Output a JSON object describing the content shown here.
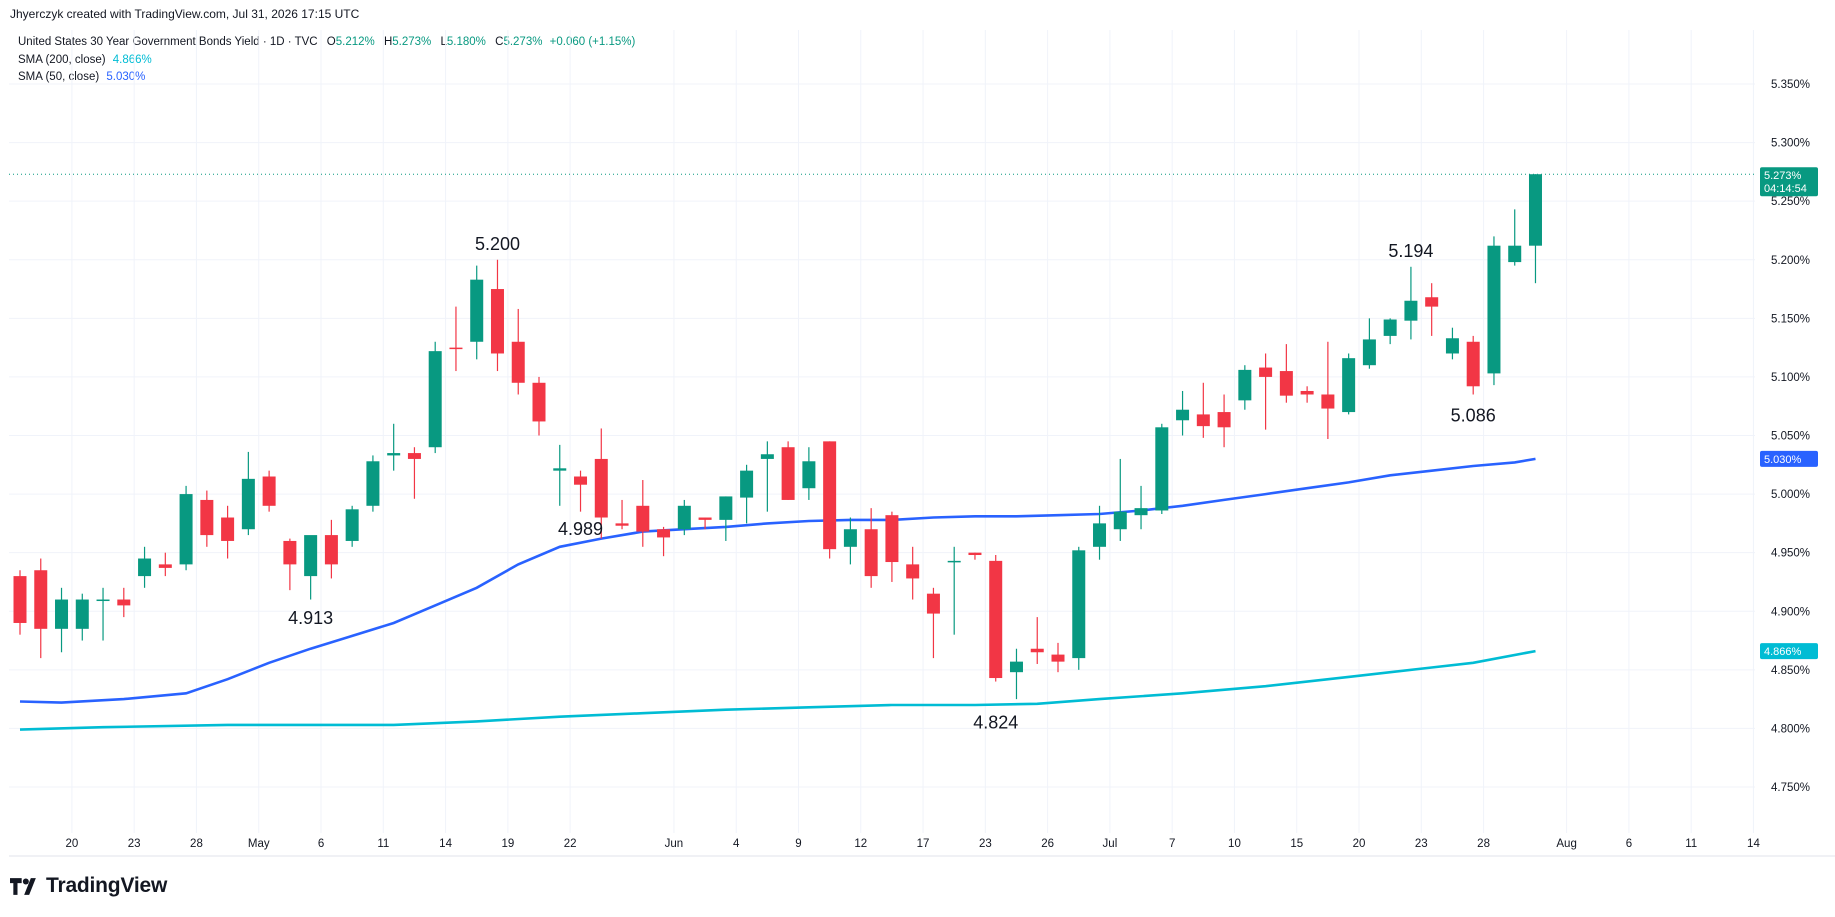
{
  "attribution": "Jhyerczyk created with TradingView.com, Jul 31, 2026 17:15 UTC",
  "legend": {
    "symbol": "United States 30 Year Government Bonds Yield · 1D · TVC",
    "o_label": "O",
    "o_value": "5.212%",
    "h_label": "H",
    "h_value": "5.273%",
    "l_label": "L",
    "l_value": "5.180%",
    "c_label": "C",
    "c_value": "5.273%",
    "change": "+0.060 (+1.15%)",
    "sma200_label": "SMA (200, close)",
    "sma200_value": "4.866%",
    "sma50_label": "SMA (50, close)",
    "sma50_value": "5.030%"
  },
  "price_tag": {
    "value": "5.273%",
    "countdown": "04:14:54"
  },
  "sma50_tag": "5.030%",
  "sma200_tag": "4.866%",
  "brand": "TradingView",
  "colors": {
    "up": "#089981",
    "down": "#f23645",
    "sma50": "#2962ff",
    "sma200": "#00bcd4",
    "grid": "#f0f3fa",
    "text": "#131722"
  },
  "chart_data": {
    "type": "candlestick",
    "ylim": [
      4.71,
      5.4
    ],
    "yticks": [
      "5.350%",
      "5.300%",
      "5.250%",
      "5.200%",
      "5.150%",
      "5.100%",
      "5.050%",
      "5.000%",
      "4.950%",
      "4.900%",
      "4.850%",
      "4.800%",
      "4.750%"
    ],
    "ytick_values": [
      5.35,
      5.3,
      5.25,
      5.2,
      5.15,
      5.1,
      5.05,
      5.0,
      4.95,
      4.9,
      4.85,
      4.8,
      4.75
    ],
    "xticks": [
      {
        "slot": 2.5,
        "label": "20"
      },
      {
        "slot": 5.5,
        "label": "23"
      },
      {
        "slot": 8.5,
        "label": "28"
      },
      {
        "slot": 11.5,
        "label": "May"
      },
      {
        "slot": 14.5,
        "label": "6"
      },
      {
        "slot": 17.5,
        "label": "11"
      },
      {
        "slot": 20.5,
        "label": "14"
      },
      {
        "slot": 23.5,
        "label": "19"
      },
      {
        "slot": 26.5,
        "label": "22"
      },
      {
        "slot": 31.5,
        "label": "Jun"
      },
      {
        "slot": 34.5,
        "label": "4"
      },
      {
        "slot": 37.5,
        "label": "9"
      },
      {
        "slot": 40.5,
        "label": "12"
      },
      {
        "slot": 43.5,
        "label": "17"
      },
      {
        "slot": 46.5,
        "label": "23"
      },
      {
        "slot": 49.5,
        "label": "26"
      },
      {
        "slot": 52.5,
        "label": "Jul"
      },
      {
        "slot": 55.5,
        "label": "7"
      },
      {
        "slot": 58.5,
        "label": "10"
      },
      {
        "slot": 61.5,
        "label": "15"
      },
      {
        "slot": 64.5,
        "label": "20"
      },
      {
        "slot": 67.5,
        "label": "23"
      },
      {
        "slot": 70.5,
        "label": "28"
      },
      {
        "slot": 74.5,
        "label": "Aug"
      },
      {
        "slot": 77.5,
        "label": "6"
      },
      {
        "slot": 80.5,
        "label": "11"
      },
      {
        "slot": 83.5,
        "label": "14"
      }
    ],
    "candles": [
      [
        4.93,
        4.935,
        4.88,
        4.89
      ],
      [
        4.935,
        4.945,
        4.86,
        4.885
      ],
      [
        4.885,
        4.92,
        4.865,
        4.91
      ],
      [
        4.885,
        4.915,
        4.875,
        4.91
      ],
      [
        4.91,
        4.92,
        4.875,
        4.91
      ],
      [
        4.91,
        4.92,
        4.895,
        4.905
      ],
      [
        4.93,
        4.955,
        4.92,
        4.945
      ],
      [
        4.94,
        4.95,
        4.93,
        4.937
      ],
      [
        4.94,
        5.007,
        4.935,
        5.0
      ],
      [
        4.995,
        5.003,
        4.955,
        4.965
      ],
      [
        4.98,
        4.99,
        4.945,
        4.96
      ],
      [
        4.97,
        5.036,
        4.965,
        5.013
      ],
      [
        5.015,
        5.02,
        4.985,
        4.99
      ],
      [
        4.96,
        4.962,
        4.918,
        4.94
      ],
      [
        4.93,
        4.96,
        4.91,
        4.965
      ],
      [
        4.965,
        4.978,
        4.928,
        4.94
      ],
      [
        4.96,
        4.99,
        4.955,
        4.987
      ],
      [
        4.99,
        5.033,
        4.985,
        5.028
      ],
      [
        5.033,
        5.06,
        5.02,
        5.035
      ],
      [
        5.035,
        5.04,
        4.996,
        5.03
      ],
      [
        5.04,
        5.13,
        5.035,
        5.122
      ],
      [
        5.125,
        5.16,
        5.105,
        5.124
      ],
      [
        5.13,
        5.195,
        5.115,
        5.183
      ],
      [
        5.175,
        5.2,
        5.105,
        5.12
      ],
      [
        5.13,
        5.158,
        5.085,
        5.095
      ],
      [
        5.095,
        5.1,
        5.05,
        5.062
      ],
      [
        5.02,
        5.042,
        4.99,
        5.022
      ],
      [
        5.015,
        5.02,
        4.985,
        5.008
      ],
      [
        5.03,
        5.056,
        4.962,
        4.98
      ],
      [
        4.975,
        4.995,
        4.97,
        4.973
      ],
      [
        4.99,
        5.012,
        4.955,
        4.968
      ],
      [
        4.97,
        4.972,
        4.947,
        4.963
      ],
      [
        4.97,
        4.995,
        4.965,
        4.99
      ],
      [
        4.98,
        4.98,
        4.97,
        4.978
      ],
      [
        4.978,
        4.998,
        4.96,
        4.998
      ],
      [
        4.997,
        5.025,
        4.975,
        5.02
      ],
      [
        5.03,
        5.045,
        4.985,
        5.034
      ],
      [
        5.04,
        5.045,
        4.995,
        4.995
      ],
      [
        5.005,
        5.04,
        4.995,
        5.028
      ],
      [
        5.045,
        5.045,
        4.945,
        4.953
      ],
      [
        4.955,
        4.98,
        4.94,
        4.97
      ],
      [
        4.97,
        4.988,
        4.92,
        4.93
      ],
      [
        4.982,
        4.985,
        4.925,
        4.942
      ],
      [
        4.94,
        4.955,
        4.91,
        4.928
      ],
      [
        4.915,
        4.92,
        4.86,
        4.898
      ],
      [
        4.943,
        4.955,
        4.88,
        4.943
      ],
      [
        4.95,
        4.95,
        4.944,
        4.948
      ],
      [
        4.943,
        4.948,
        4.84,
        4.843
      ],
      [
        4.848,
        4.868,
        4.825,
        4.857
      ],
      [
        4.868,
        4.895,
        4.855,
        4.865
      ],
      [
        4.863,
        4.873,
        4.848,
        4.857
      ],
      [
        4.86,
        4.955,
        4.85,
        4.952
      ],
      [
        4.955,
        4.99,
        4.944,
        4.975
      ],
      [
        4.97,
        5.03,
        4.96,
        4.985
      ],
      [
        4.982,
        5.007,
        4.97,
        4.988
      ],
      [
        4.986,
        5.06,
        4.983,
        5.057
      ],
      [
        5.063,
        5.088,
        5.05,
        5.072
      ],
      [
        5.068,
        5.095,
        5.048,
        5.058
      ],
      [
        5.07,
        5.085,
        5.04,
        5.057
      ],
      [
        5.08,
        5.11,
        5.072,
        5.106
      ],
      [
        5.108,
        5.12,
        5.055,
        5.1
      ],
      [
        5.105,
        5.128,
        5.078,
        5.084
      ],
      [
        5.088,
        5.092,
        5.078,
        5.085
      ],
      [
        5.085,
        5.13,
        5.047,
        5.073
      ],
      [
        5.07,
        5.12,
        5.068,
        5.116
      ],
      [
        5.11,
        5.15,
        5.107,
        5.132
      ],
      [
        5.135,
        5.15,
        5.128,
        5.149
      ],
      [
        5.148,
        5.194,
        5.132,
        5.165
      ],
      [
        5.168,
        5.18,
        5.135,
        5.16
      ],
      [
        5.12,
        5.142,
        5.115,
        5.133
      ],
      [
        5.13,
        5.135,
        5.085,
        5.092
      ],
      [
        5.103,
        5.22,
        5.093,
        5.212
      ],
      [
        5.198,
        5.243,
        5.195,
        5.212
      ],
      [
        5.212,
        5.273,
        5.18,
        5.273
      ]
    ],
    "sma50": [
      [
        0,
        4.823
      ],
      [
        2,
        4.822
      ],
      [
        5,
        4.825
      ],
      [
        8,
        4.83
      ],
      [
        10,
        4.842
      ],
      [
        12,
        4.856
      ],
      [
        14,
        4.868
      ],
      [
        16,
        4.879
      ],
      [
        18,
        4.89
      ],
      [
        20,
        4.905
      ],
      [
        22,
        4.92
      ],
      [
        24,
        4.94
      ],
      [
        26,
        4.955
      ],
      [
        28,
        4.962
      ],
      [
        30,
        4.968
      ],
      [
        32,
        4.97
      ],
      [
        34,
        4.972
      ],
      [
        36,
        4.975
      ],
      [
        38,
        4.977
      ],
      [
        40,
        4.978
      ],
      [
        42,
        4.978
      ],
      [
        44,
        4.98
      ],
      [
        46,
        4.981
      ],
      [
        48,
        4.981
      ],
      [
        50,
        4.982
      ],
      [
        52,
        4.983
      ],
      [
        54,
        4.986
      ],
      [
        56,
        4.99
      ],
      [
        58,
        4.995
      ],
      [
        60,
        5.0
      ],
      [
        62,
        5.005
      ],
      [
        64,
        5.01
      ],
      [
        66,
        5.016
      ],
      [
        68,
        5.02
      ],
      [
        70,
        5.024
      ],
      [
        72,
        5.027
      ],
      [
        73,
        5.03
      ]
    ],
    "sma200": [
      [
        0,
        4.799
      ],
      [
        4,
        4.801
      ],
      [
        10,
        4.803
      ],
      [
        14,
        4.803
      ],
      [
        18,
        4.803
      ],
      [
        22,
        4.806
      ],
      [
        26,
        4.81
      ],
      [
        30,
        4.813
      ],
      [
        34,
        4.816
      ],
      [
        38,
        4.818
      ],
      [
        42,
        4.82
      ],
      [
        46,
        4.82
      ],
      [
        49,
        4.821
      ],
      [
        52,
        4.825
      ],
      [
        56,
        4.83
      ],
      [
        60,
        4.836
      ],
      [
        64,
        4.844
      ],
      [
        68,
        4.852
      ],
      [
        70,
        4.856
      ],
      [
        73,
        4.866
      ]
    ],
    "annotations": [
      {
        "label": "5.200",
        "slot": 23,
        "value": 5.2,
        "pos": "above"
      },
      {
        "label": "4.913",
        "slot": 14,
        "value": 4.913,
        "pos": "below"
      },
      {
        "label": "4.989",
        "slot": 27,
        "value": 4.989,
        "pos": "below"
      },
      {
        "label": "4.824",
        "slot": 47,
        "value": 4.824,
        "pos": "below"
      },
      {
        "label": "5.194",
        "slot": 67,
        "value": 5.194,
        "pos": "above"
      },
      {
        "label": "5.086",
        "slot": 70,
        "value": 5.086,
        "pos": "below"
      }
    ],
    "last_price": 5.273,
    "grid": true
  }
}
